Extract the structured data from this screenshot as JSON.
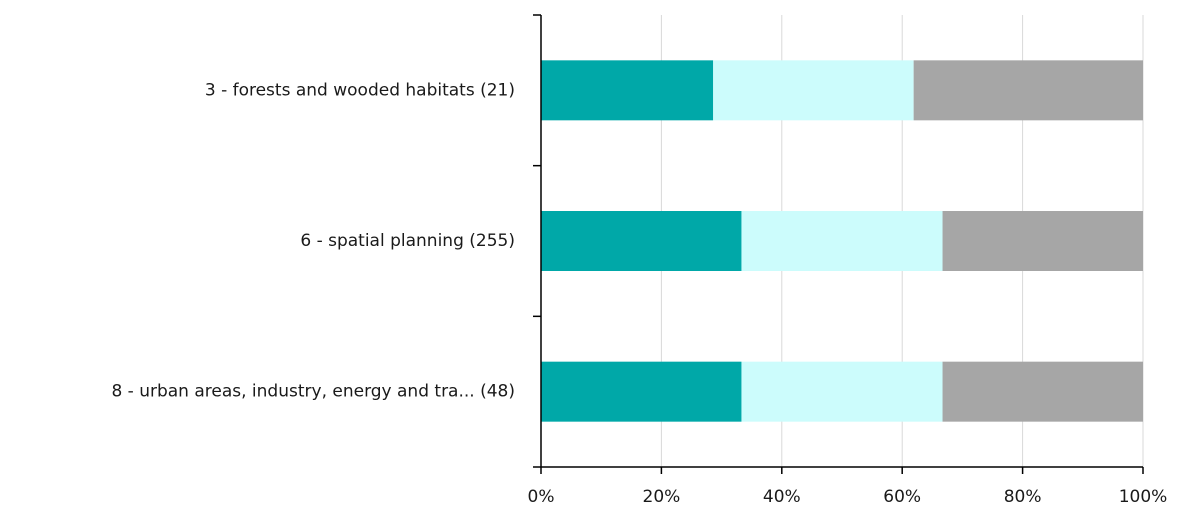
{
  "chart_data": {
    "type": "bar",
    "orientation": "horizontal",
    "stacked": "percent",
    "categories": [
      "3 - forests and wooded habitats (21)",
      "6 - spatial planning (255)",
      "8 - urban areas, industry, energy and tra... (48)"
    ],
    "series": [
      {
        "color": "#00a8a8",
        "values": [
          28.6,
          33.3,
          33.3
        ]
      },
      {
        "color": "#ccfcfc",
        "values": [
          33.3,
          33.4,
          33.4
        ]
      },
      {
        "color": "#a6a6a6",
        "values": [
          38.1,
          33.3,
          33.3
        ]
      }
    ],
    "xlim": [
      0,
      100
    ],
    "xticks": [
      "0%",
      "20%",
      "40%",
      "60%",
      "80%",
      "100%"
    ],
    "grid": true,
    "legend": "none"
  }
}
